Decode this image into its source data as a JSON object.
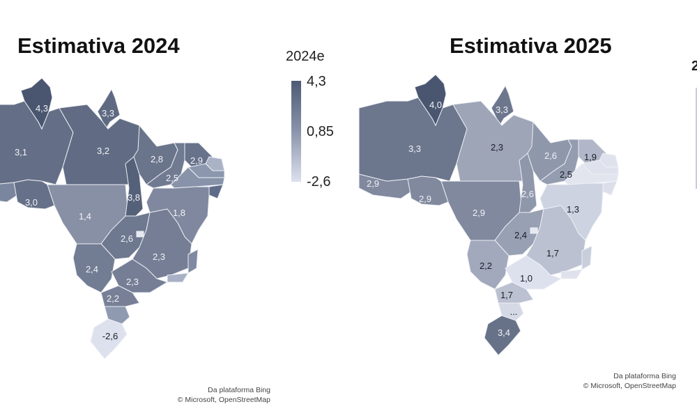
{
  "maps": [
    {
      "title": "Estimativa 2024",
      "legend": {
        "title": "2024e",
        "max_label": "4,3",
        "mid_label": "0,85",
        "min_label": "-2,6",
        "min": -2.6,
        "max": 4.3
      },
      "attribution": {
        "line1": "Da plataforma Bing",
        "line2": "© Microsoft, OpenStreetMap"
      },
      "states": {
        "RR": {
          "value": 4.3,
          "label": "4,3"
        },
        "AP": {
          "value": 3.3,
          "label": "3,3"
        },
        "AM": {
          "value": 3.1,
          "label": "3,1"
        },
        "PA": {
          "value": 3.2,
          "label": "3,2"
        },
        "MA": {
          "value": 2.8,
          "label": "2,8"
        },
        "PI": {
          "value": 2.5,
          "label": "2,5"
        },
        "CE": {
          "value": 2.9,
          "label": "2,9"
        },
        "TO": {
          "value": 3.8,
          "label": "3,8"
        },
        "RO": {
          "value": 3.0,
          "label": "3,0"
        },
        "MT": {
          "value": 1.4,
          "label": "1,4"
        },
        "BA": {
          "value": 1.8,
          "label": "1,8"
        },
        "GO": {
          "value": 2.6,
          "label": "2,6"
        },
        "MG": {
          "value": 2.3,
          "label": "2,3"
        },
        "MS": {
          "value": 2.4,
          "label": "2,4"
        },
        "SP": {
          "value": 2.3,
          "label": "2,3"
        },
        "PR": {
          "value": 2.2,
          "label": "2,2"
        },
        "RS": {
          "value": -2.6,
          "label": "-2,6"
        },
        "AC": {
          "fill": "#7a869e"
        },
        "RN": {
          "fill": "#aab2c6"
        },
        "PB": {
          "fill": "#8c97ae"
        },
        "PE": {
          "fill": "#8893aa"
        },
        "AL": {
          "fill": "#5f6c88"
        },
        "ES": {
          "fill": "#7e89a2"
        },
        "RJ": {
          "fill": "#a7b0c4"
        },
        "SC": {
          "fill": "#8f9ab0"
        },
        "DF": {
          "fill": "#e6e9f1"
        }
      }
    },
    {
      "title": "Estimativa 2025",
      "legend": {
        "title": "2",
        "min": 1.0,
        "max": 4.0
      },
      "attribution": {
        "line1": "Da plataforma Bing",
        "line2": "© Microsoft, OpenStreetMap"
      },
      "states": {
        "RR": {
          "value": 4.0,
          "label": "4,0"
        },
        "AP": {
          "value": 3.3,
          "label": "3,3"
        },
        "AM": {
          "value": 3.3,
          "label": "3,3"
        },
        "AC": {
          "value": 2.9,
          "label": "2,9"
        },
        "RO": {
          "value": 2.9,
          "label": "2,9"
        },
        "MT": {
          "value": 2.9,
          "label": "2,9"
        },
        "PA": {
          "value": 2.3,
          "label": "2,3"
        },
        "MA": {
          "value": 2.6,
          "label": "2,6"
        },
        "PI": {
          "value": 2.5,
          "label": "2,5"
        },
        "CE": {
          "value": 1.9,
          "label": "1,9"
        },
        "TO": {
          "value": 2.6,
          "label": "2,6"
        },
        "BA": {
          "value": 1.3,
          "label": "1,3"
        },
        "GO": {
          "value": 2.4,
          "label": "2,4"
        },
        "MG": {
          "value": 1.7,
          "label": "1,7"
        },
        "MS": {
          "value": 2.2,
          "label": "2,2"
        },
        "SP": {
          "value": 1.0,
          "label": "1,0"
        },
        "PR": {
          "value": 1.7,
          "label": "1,7"
        },
        "SC": {
          "fill": "#d5d9e5",
          "label": "..."
        },
        "RS": {
          "value": 3.4,
          "label": "3,4"
        },
        "RN": {
          "fill": "#dfe2ec"
        },
        "PB": {
          "fill": "#dfe2ec"
        },
        "PE": {
          "fill": "#e2e5ee"
        },
        "AL": {
          "fill": "#dcdfea"
        },
        "ES": {
          "fill": "#c9cedc"
        },
        "RJ": {
          "fill": "#dfe2ec"
        },
        "DF": {
          "fill": "#e6e9f1"
        }
      }
    }
  ],
  "colors": {
    "low": "#dde1ee",
    "high": "#4a5670",
    "border": "#eef0f5"
  }
}
